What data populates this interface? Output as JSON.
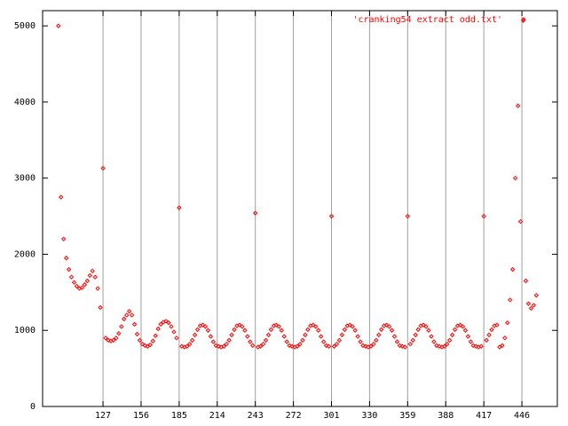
{
  "chart_data": {
    "type": "scatter",
    "legend": "top-right",
    "grid": "x",
    "series": [
      {
        "name": "'cranking54 extract odd.txt'",
        "color": "#ff0000",
        "x": [
          93,
          95,
          97,
          99,
          101,
          103,
          105,
          107,
          109,
          111,
          113,
          115,
          117,
          119,
          121,
          123,
          125,
          127,
          129,
          131,
          133,
          135,
          137,
          139,
          141,
          143,
          145,
          147,
          149,
          151,
          153,
          155,
          157,
          159,
          161,
          163,
          165,
          167,
          169,
          171,
          173,
          175,
          177,
          179,
          181,
          183,
          185,
          187,
          189,
          191,
          193,
          195,
          197,
          199,
          201,
          203,
          205,
          207,
          209,
          211,
          213,
          215,
          217,
          219,
          221,
          223,
          225,
          227,
          229,
          231,
          233,
          235,
          237,
          239,
          241,
          243,
          245,
          247,
          249,
          251,
          253,
          255,
          257,
          259,
          261,
          263,
          265,
          267,
          269,
          271,
          273,
          275,
          277,
          279,
          281,
          283,
          285,
          287,
          289,
          291,
          293,
          295,
          297,
          299,
          301,
          303,
          305,
          307,
          309,
          311,
          313,
          315,
          317,
          319,
          321,
          323,
          325,
          327,
          329,
          331,
          333,
          335,
          337,
          339,
          341,
          343,
          345,
          347,
          349,
          351,
          353,
          355,
          357,
          359,
          361,
          363,
          365,
          367,
          369,
          371,
          373,
          375,
          377,
          379,
          381,
          383,
          385,
          387,
          389,
          391,
          393,
          395,
          397,
          399,
          401,
          403,
          405,
          407,
          409,
          411,
          413,
          415,
          417,
          419,
          421,
          423,
          425,
          427,
          429,
          431,
          433,
          435,
          437,
          439,
          441,
          443,
          445,
          447,
          449,
          451,
          453,
          455,
          457
        ],
        "values": [
          5000,
          2750,
          2200,
          1950,
          1800,
          1700,
          1630,
          1580,
          1550,
          1560,
          1600,
          1650,
          1720,
          1780,
          1700,
          1550,
          1300,
          3130,
          900,
          870,
          860,
          870,
          900,
          960,
          1050,
          1150,
          1200,
          1250,
          1200,
          1080,
          950,
          870,
          820,
          800,
          790,
          810,
          860,
          930,
          1020,
          1080,
          1110,
          1120,
          1100,
          1050,
          980,
          900,
          2610,
          790,
          780,
          790,
          820,
          870,
          940,
          1010,
          1060,
          1070,
          1050,
          1000,
          920,
          850,
          800,
          790,
          780,
          790,
          820,
          870,
          940,
          1010,
          1060,
          1070,
          1050,
          1000,
          920,
          850,
          800,
          2540,
          780,
          790,
          820,
          870,
          940,
          1010,
          1060,
          1070,
          1050,
          1000,
          920,
          850,
          800,
          790,
          780,
          790,
          820,
          870,
          940,
          1010,
          1060,
          1070,
          1050,
          1000,
          920,
          850,
          800,
          790,
          2500,
          790,
          820,
          870,
          940,
          1010,
          1060,
          1070,
          1050,
          1000,
          920,
          850,
          800,
          790,
          780,
          790,
          820,
          870,
          940,
          1010,
          1060,
          1070,
          1050,
          1000,
          920,
          850,
          800,
          790,
          780,
          2500,
          820,
          870,
          940,
          1010,
          1060,
          1070,
          1050,
          1000,
          920,
          850,
          800,
          790,
          780,
          790,
          820,
          870,
          940,
          1010,
          1060,
          1070,
          1050,
          1000,
          920,
          850,
          800,
          790,
          780,
          790,
          2500,
          870,
          940,
          1010,
          1060,
          1070,
          780,
          800,
          900,
          1100,
          1400,
          1800,
          3000,
          3950,
          2430,
          5070,
          1650,
          1350,
          1290,
          1330,
          1460
        ]
      }
    ],
    "xlim": [
      81,
      473
    ],
    "xticks": [
      127,
      156,
      185,
      214,
      243,
      272,
      301,
      330,
      359,
      388,
      417,
      446
    ],
    "ylim": [
      0,
      5200
    ],
    "yticks": [
      0,
      1000,
      2000,
      3000,
      4000,
      5000
    ]
  }
}
